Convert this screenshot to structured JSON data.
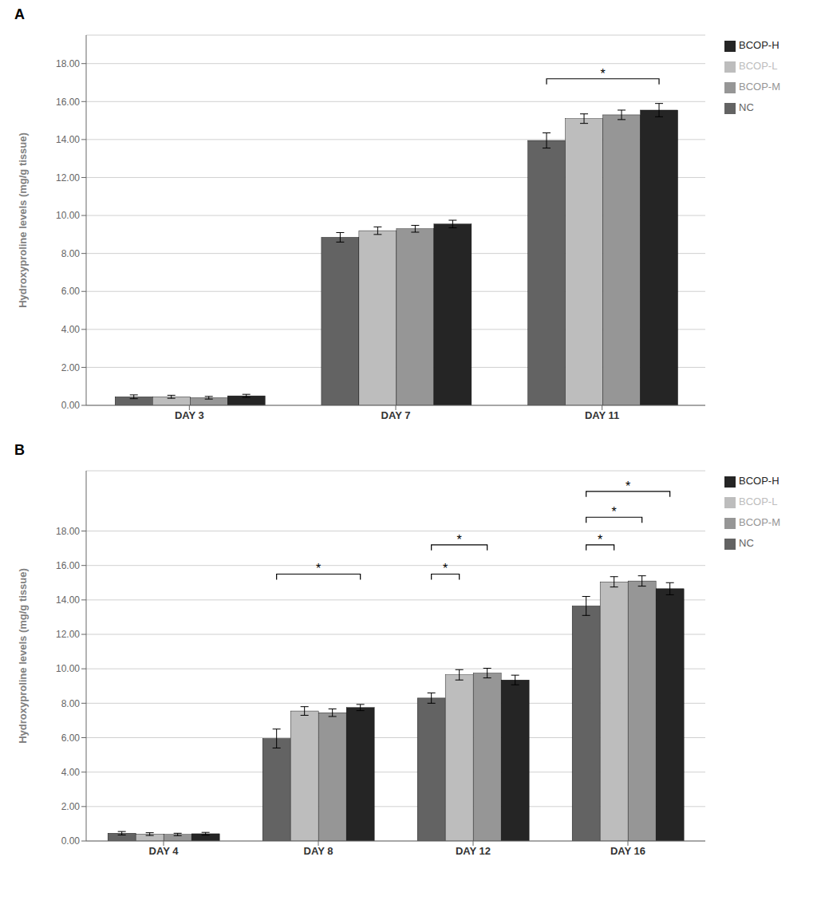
{
  "chart_data": [
    {
      "type": "bar",
      "title": "A",
      "ylabel": "Hydroxyproline levels (mg/g tissue)",
      "categories": [
        "DAY 3",
        "DAY 7",
        "DAY 11"
      ],
      "series": [
        {
          "name": "NC",
          "color": "#636363",
          "values": [
            0.45,
            8.85,
            13.95
          ],
          "errors": [
            0.1,
            0.25,
            0.4
          ]
        },
        {
          "name": "BCOP-L",
          "color": "#BDBDBD",
          "values": [
            0.45,
            9.2,
            15.1
          ],
          "errors": [
            0.08,
            0.2,
            0.25
          ]
        },
        {
          "name": "BCOP-M",
          "color": "#969696",
          "values": [
            0.4,
            9.3,
            15.3
          ],
          "errors": [
            0.07,
            0.18,
            0.25
          ]
        },
        {
          "name": "BCOP-H",
          "color": "#252525",
          "values": [
            0.5,
            9.55,
            15.55
          ],
          "errors": [
            0.08,
            0.2,
            0.35
          ]
        }
      ],
      "ylim": [
        0,
        19.5
      ],
      "yticks": [
        {
          "value": 0,
          "label": "0.00"
        },
        {
          "value": 2,
          "label": "2.00"
        },
        {
          "value": 4,
          "label": "4.00"
        },
        {
          "value": 6,
          "label": "6.00"
        },
        {
          "value": 8,
          "label": "8.00"
        },
        {
          "value": 10,
          "label": "10.00"
        },
        {
          "value": 12,
          "label": "12.00"
        },
        {
          "value": 14,
          "label": "14.00"
        },
        {
          "value": 16,
          "label": "16.00"
        },
        {
          "value": 18,
          "label": "18.00"
        }
      ],
      "annotations": [
        {
          "category": "DAY 11",
          "from": "NC",
          "to": "BCOP-H",
          "y": 17.2,
          "label": "*"
        }
      ],
      "grid": true,
      "legend": "right"
    },
    {
      "type": "bar",
      "title": "B",
      "ylabel": "Hydroxyproline levels (mg/g tissue)",
      "categories": [
        "DAY 4",
        "DAY 8",
        "DAY 12",
        "DAY 16"
      ],
      "series": [
        {
          "name": "NC",
          "color": "#636363",
          "values": [
            0.45,
            5.95,
            8.3,
            13.65
          ],
          "errors": [
            0.1,
            0.55,
            0.3,
            0.55
          ]
        },
        {
          "name": "BCOP-L",
          "color": "#BDBDBD",
          "values": [
            0.4,
            7.55,
            9.65,
            15.05
          ],
          "errors": [
            0.08,
            0.25,
            0.3,
            0.3
          ]
        },
        {
          "name": "BCOP-M",
          "color": "#969696",
          "values": [
            0.38,
            7.45,
            9.75,
            15.1
          ],
          "errors": [
            0.07,
            0.22,
            0.28,
            0.3
          ]
        },
        {
          "name": "BCOP-H",
          "color": "#252525",
          "values": [
            0.42,
            7.75,
            9.35,
            14.65
          ],
          "errors": [
            0.08,
            0.18,
            0.28,
            0.35
          ]
        }
      ],
      "ylim": [
        0,
        21.5
      ],
      "yticks": [
        {
          "value": 0,
          "label": "0.00"
        },
        {
          "value": 2,
          "label": "2.00"
        },
        {
          "value": 4,
          "label": "4.00"
        },
        {
          "value": 6,
          "label": "6.00"
        },
        {
          "value": 8,
          "label": "8.00"
        },
        {
          "value": 10,
          "label": "10.00"
        },
        {
          "value": 12,
          "label": "12.00"
        },
        {
          "value": 14,
          "label": "14.00"
        },
        {
          "value": 16,
          "label": "16.00"
        },
        {
          "value": 18,
          "label": "18.00"
        }
      ],
      "annotations": [
        {
          "category": "DAY 8",
          "from": "NC",
          "to": "BCOP-H",
          "y": 15.5,
          "label": "*"
        },
        {
          "category": "DAY 12",
          "from": "NC",
          "to": "BCOP-L",
          "y": 15.5,
          "label": "*"
        },
        {
          "category": "DAY 12",
          "from": "NC",
          "to": "BCOP-M",
          "y": 17.2,
          "label": "*"
        },
        {
          "category": "DAY 16",
          "from": "NC",
          "to": "BCOP-L",
          "y": 17.2,
          "label": "*"
        },
        {
          "category": "DAY 16",
          "from": "NC",
          "to": "BCOP-M",
          "y": 18.8,
          "label": "*"
        },
        {
          "category": "DAY 16",
          "from": "NC",
          "to": "BCOP-H",
          "y": 20.3,
          "label": "*"
        }
      ],
      "grid": true,
      "legend": "right"
    }
  ]
}
